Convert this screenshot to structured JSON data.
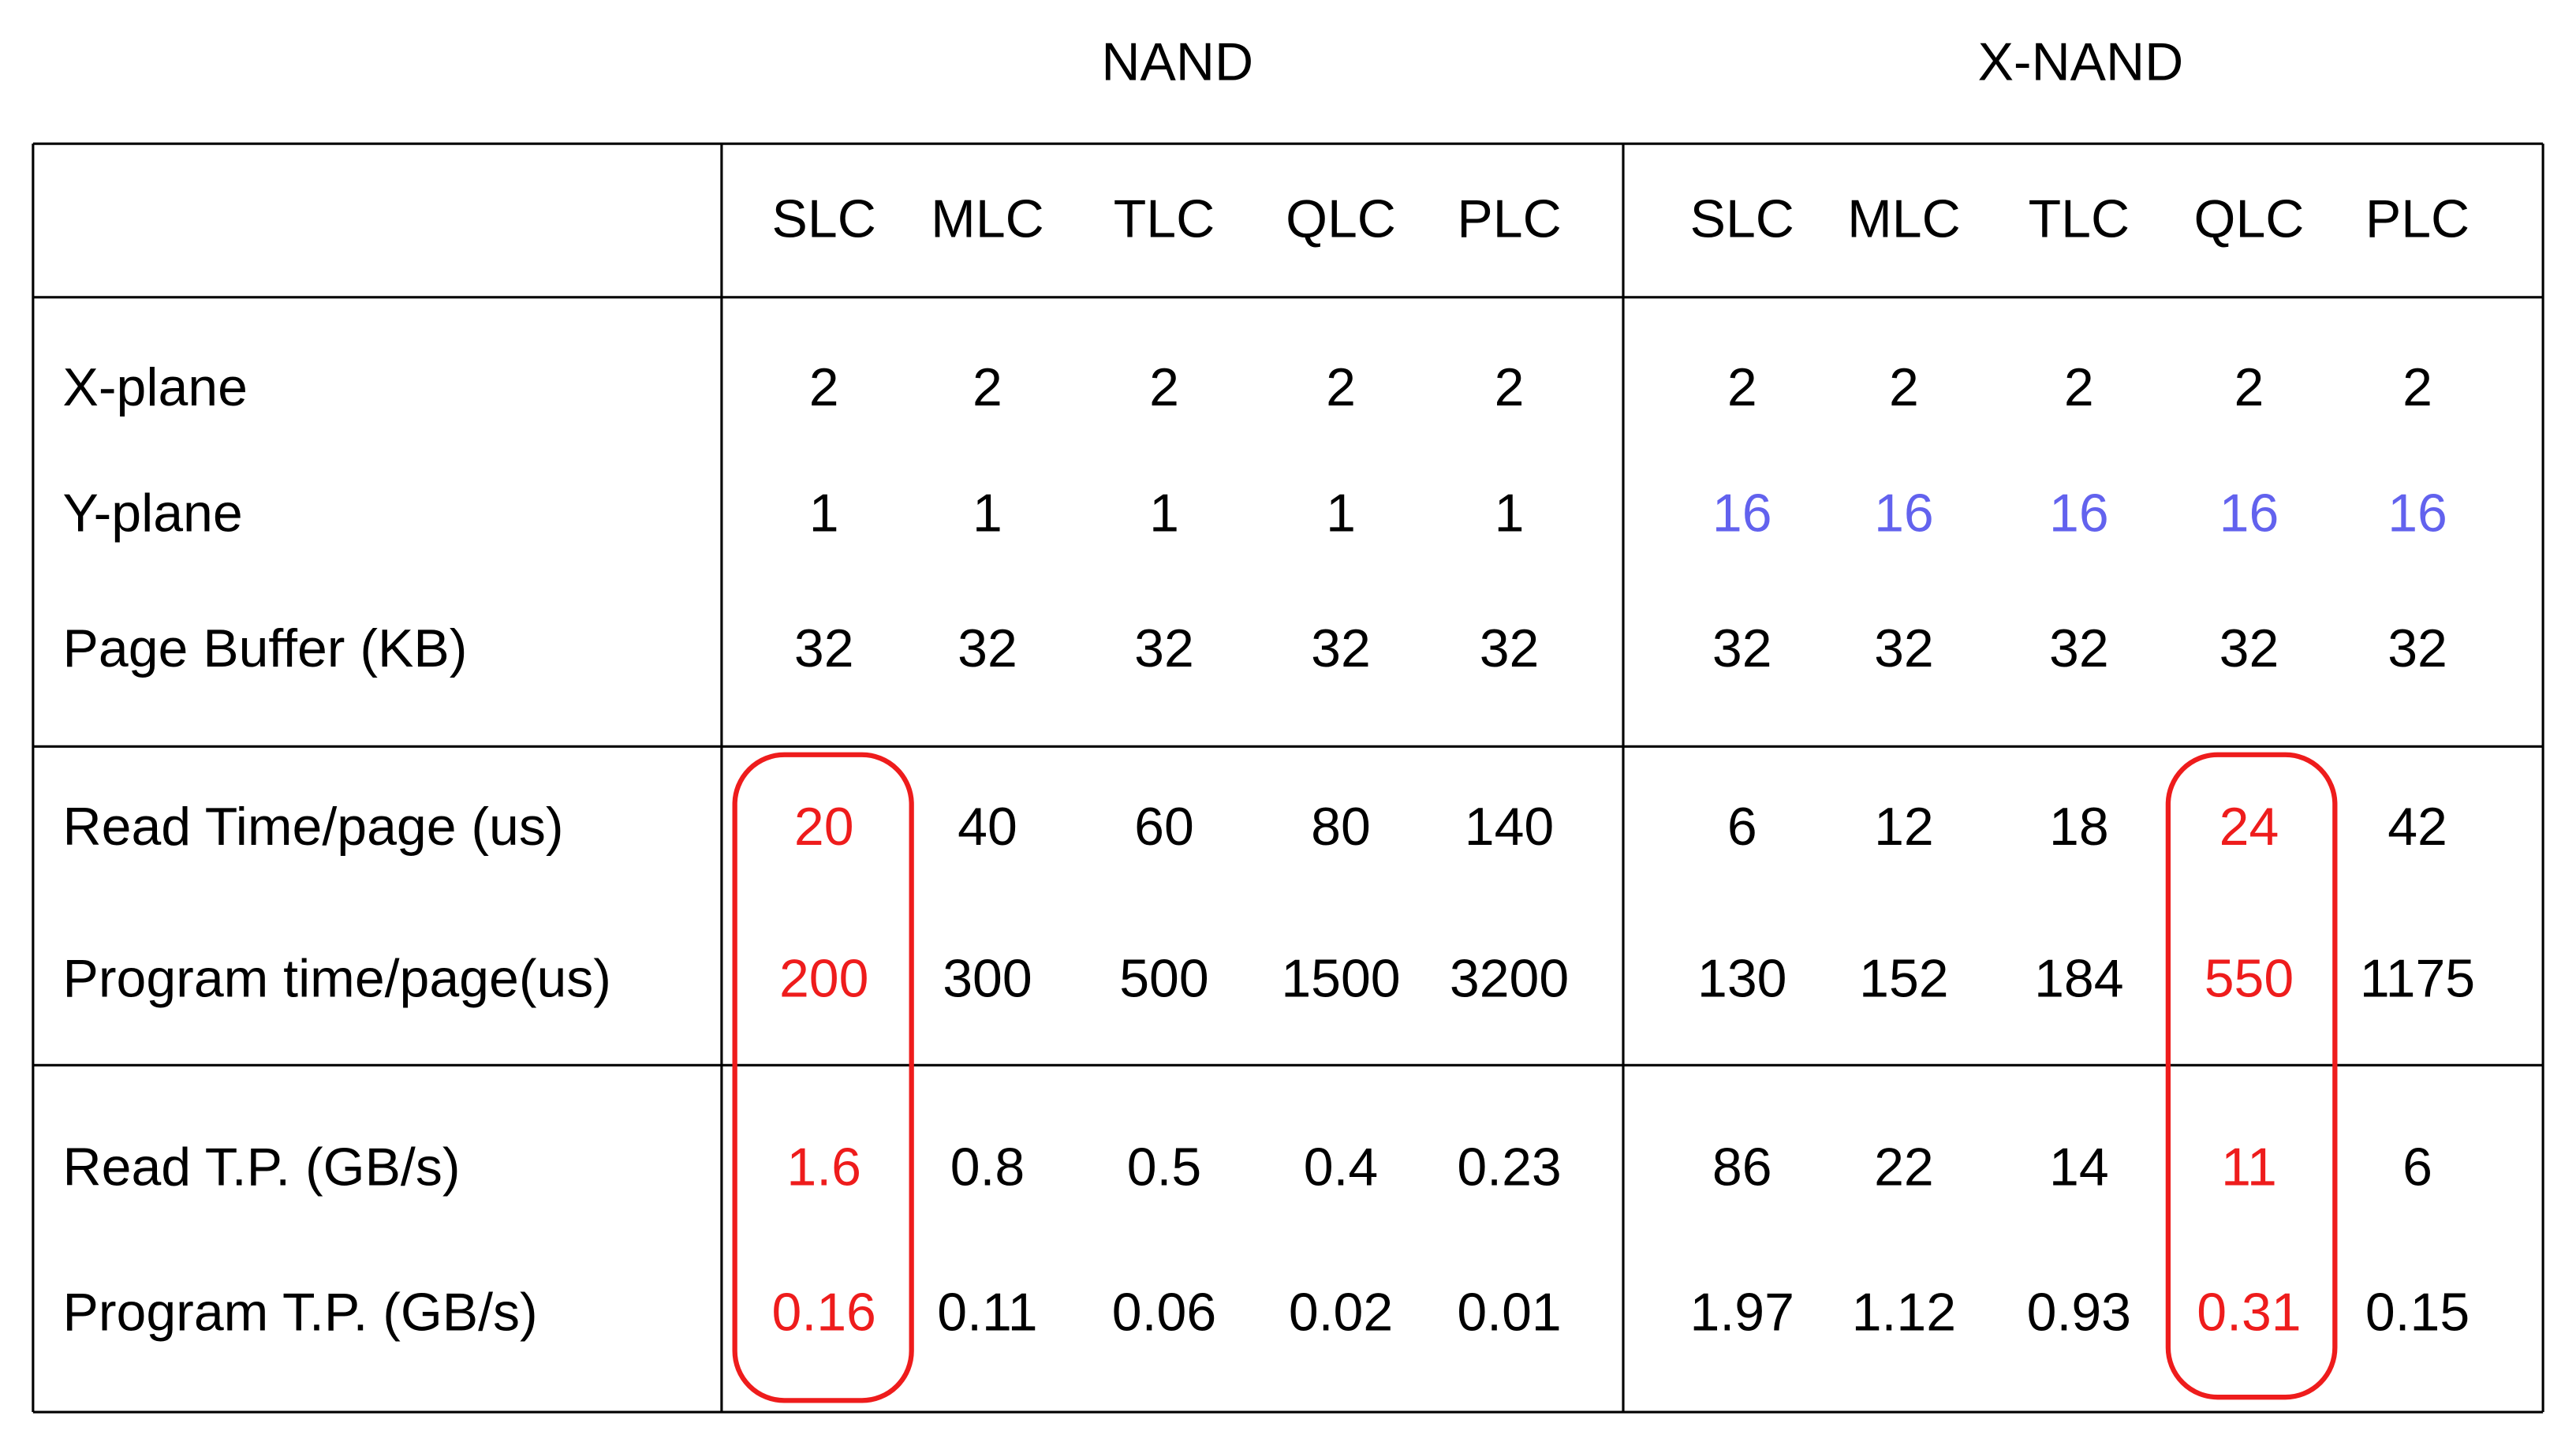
{
  "groups": [
    "NAND",
    "X-NAND"
  ],
  "columns": [
    "SLC",
    "MLC",
    "TLC",
    "QLC",
    "PLC",
    "SLC",
    "MLC",
    "TLC",
    "QLC",
    "PLC"
  ],
  "rows": [
    {
      "label": "X-plane",
      "values": [
        2,
        2,
        2,
        2,
        2,
        2,
        2,
        2,
        2,
        2
      ]
    },
    {
      "label": "Y-plane",
      "values": [
        1,
        1,
        1,
        1,
        1,
        16,
        16,
        16,
        16,
        16
      ]
    },
    {
      "label": "Page Buffer (KB)",
      "values": [
        32,
        32,
        32,
        32,
        32,
        32,
        32,
        32,
        32,
        32
      ]
    },
    {
      "label": "Read Time/page (us)",
      "values": [
        20,
        40,
        60,
        80,
        140,
        6,
        12,
        18,
        24,
        42
      ]
    },
    {
      "label": "Program time/page(us)",
      "values": [
        200,
        300,
        500,
        1500,
        3200,
        130,
        152,
        184,
        550,
        1175
      ]
    },
    {
      "label": "Read T.P. (GB/s)",
      "values": [
        1.6,
        0.8,
        0.5,
        0.4,
        0.23,
        86,
        22,
        14,
        11,
        6
      ]
    },
    {
      "label": "Program T.P. (GB/s)",
      "values": [
        0.16,
        0.11,
        0.06,
        0.02,
        0.01,
        1.97,
        1.12,
        0.93,
        0.31,
        0.15
      ]
    }
  ]
}
